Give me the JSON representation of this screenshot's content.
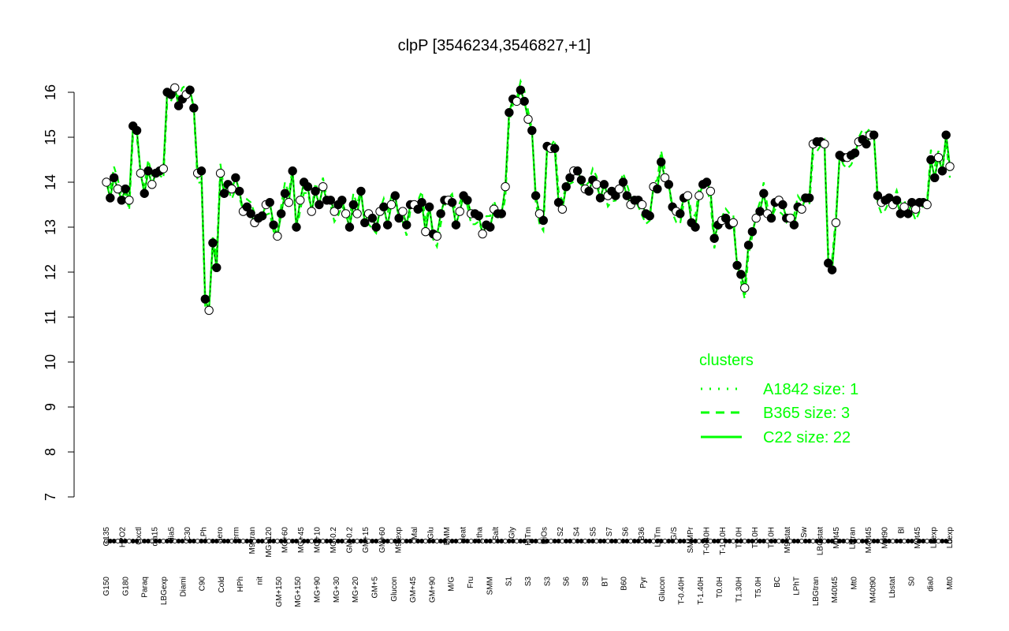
{
  "chart_data": {
    "type": "line",
    "title": "clpP [3546234,3546827,+1]",
    "xlabel": "",
    "ylabel": "",
    "ylim": [
      7,
      16
    ],
    "yticks": [
      7,
      8,
      9,
      10,
      11,
      12,
      13,
      14,
      15,
      16
    ],
    "grid": false,
    "legend_position": "bottom-right",
    "legend": {
      "title": "clusters",
      "entries": [
        {
          "label": "A1842 size: 1",
          "style": "dotted"
        },
        {
          "label": "B365 size: 3",
          "style": "dashed"
        },
        {
          "label": "C22 size: 22",
          "style": "solid"
        }
      ]
    },
    "line_color": "#00ff00",
    "x_tick_labels_upper": [
      "G135",
      "H2O2",
      "Oxctl",
      "dia15",
      "dia5",
      "C30",
      "LPh",
      "aero",
      "ferm",
      "M9-tran",
      "MG+120",
      "MG+60",
      "MG+45",
      "MG+10",
      "MG-0.2",
      "GM-0.2",
      "GM+15",
      "GM+60",
      "M9-exp",
      "Mal",
      "Glu",
      "BMM",
      "Heat",
      "Etha",
      "Salt",
      "Gly",
      "HiTm",
      "HiOs",
      "S2",
      "S4",
      "S5",
      "S7",
      "S6",
      "B36",
      "LoTm",
      "G/S",
      "SMMPr",
      "T-0.40H",
      "T-1.10H",
      "T2.0H",
      "T3.0H",
      "T4.0H",
      "M9-stat",
      "Sw",
      "LBGstat",
      "M0t45",
      "Lbtran",
      "M40t45",
      "M0t90",
      "Bl",
      "M0t45",
      "Lbexp",
      "Lbexp"
    ],
    "x_tick_labels_lower": [
      "G150",
      "G180",
      "Paraq",
      "LBGexp",
      "Diami",
      "C90",
      "Cold",
      "HPh",
      "nit",
      "GM+150",
      "MG+150",
      "MG+90",
      "MG+30",
      "MG+20",
      "GM+5",
      "Glucon",
      "GM+45",
      "GM+90",
      "M/G",
      "Fru",
      "SMM",
      "S1",
      "S3",
      "S3",
      "S6",
      "S8",
      "BT",
      "B60",
      "Pyr",
      "Glucon",
      "T-0.40H",
      "T-1.40H",
      "T0.0H",
      "T1.30H",
      "T5.0H",
      "BC",
      "LPhT",
      "LBGtran",
      "M40t45",
      "Mt0",
      "M40t90",
      "Lbstat",
      "S0",
      "dia0",
      "Mt0"
    ],
    "series": [
      {
        "values": [
          14.0,
          13.65,
          14.1,
          13.85,
          13.6,
          13.85,
          13.6,
          15.25,
          15.15,
          14.2,
          13.75,
          14.25,
          13.95,
          14.2,
          14.25,
          14.3,
          16.0,
          15.95,
          16.1,
          15.7,
          15.85,
          15.95,
          16.05,
          15.65,
          14.2,
          14.25,
          11.4,
          11.15,
          12.65,
          12.1,
          14.2,
          13.75,
          13.95,
          13.85,
          14.1,
          13.8,
          13.35,
          13.45,
          13.3,
          13.1,
          13.2,
          13.25,
          13.5,
          13.55,
          13.05,
          12.8,
          13.3,
          13.75,
          13.55,
          14.25,
          13.0,
          13.6,
          14.0,
          13.9,
          13.35,
          13.8,
          13.5,
          13.9,
          13.6,
          13.6,
          13.35,
          13.5,
          13.6,
          13.3,
          13.0,
          13.5,
          13.3,
          13.8,
          13.1,
          13.3,
          13.2,
          13.0,
          13.35,
          13.45,
          13.05,
          13.5,
          13.7,
          13.2,
          13.35,
          13.05,
          13.5,
          13.5,
          13.4,
          13.55,
          12.9,
          13.45,
          12.85,
          12.8,
          13.3,
          13.6,
          13.6,
          13.55,
          13.05,
          13.35,
          13.7,
          13.6,
          13.3,
          13.3,
          13.25,
          12.85,
          13.05,
          13.0,
          13.4,
          13.3,
          13.3,
          13.9,
          15.55,
          15.85,
          15.8,
          16.05,
          15.8,
          15.4,
          15.15,
          13.7,
          13.3,
          13.15,
          14.8,
          14.75,
          14.75,
          13.55,
          13.4,
          13.9,
          14.1,
          14.25,
          14.25,
          14.05,
          13.85,
          13.8,
          14.05,
          13.95,
          13.65,
          13.95,
          13.7,
          13.8,
          13.7,
          13.85,
          14.0,
          13.7,
          13.5,
          13.6,
          13.6,
          13.5,
          13.3,
          13.25,
          13.9,
          13.85,
          14.45,
          14.1,
          13.95,
          13.45,
          13.35,
          13.3,
          13.65,
          13.7,
          13.1,
          13.0,
          13.7,
          13.95,
          14.0,
          13.8,
          12.75,
          13.05,
          13.15,
          13.2,
          13.05,
          13.1,
          12.15,
          11.95,
          11.65,
          12.6,
          12.9,
          13.2,
          13.35,
          13.75,
          13.3,
          13.2,
          13.55,
          13.6,
          13.5,
          13.2,
          13.2,
          13.05,
          13.45,
          13.4,
          13.65,
          13.65,
          14.85,
          14.9,
          14.9,
          14.85,
          12.2,
          12.05,
          13.1,
          14.6,
          14.55,
          14.55,
          14.6,
          14.65,
          14.9,
          14.95,
          14.85,
          15.05,
          15.05,
          13.7,
          13.55,
          13.6,
          13.65,
          13.5,
          13.6,
          13.3,
          13.45,
          13.3,
          13.55,
          13.4,
          13.55,
          13.55,
          13.5,
          14.5,
          14.1,
          14.55,
          14.25,
          15.05,
          14.35
        ]
      }
    ]
  }
}
